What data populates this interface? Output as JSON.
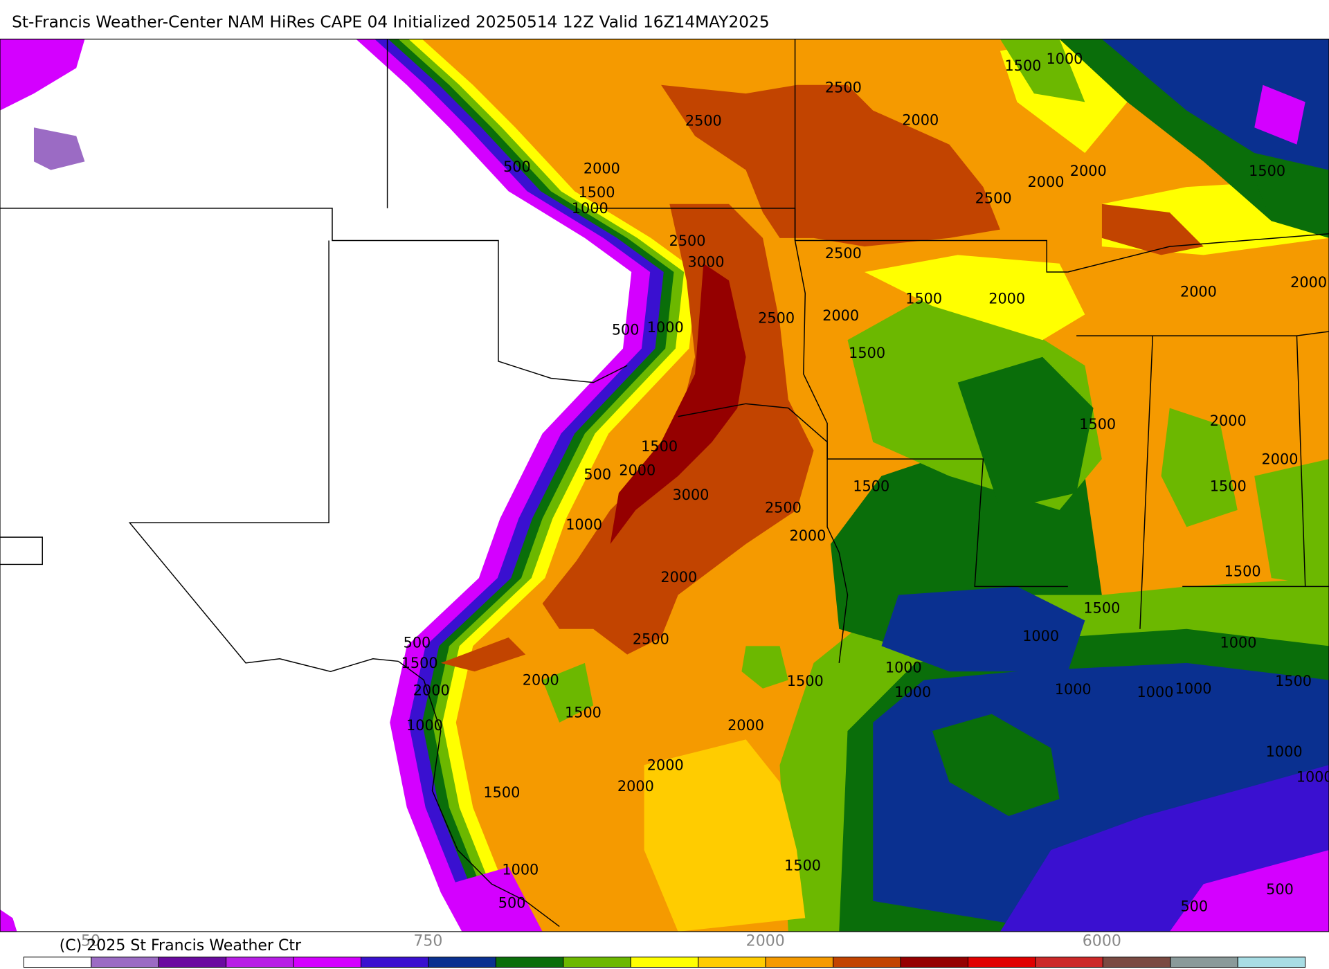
{
  "header": {
    "title": "St-Francis Weather-Center NAM HiRes CAPE  04 Initialized 20250514 12Z Valid 16Z14MAY2025"
  },
  "map": {
    "contour_labels": [
      "500",
      "2000",
      "1500",
      "1000",
      "2500",
      "2500",
      "2000",
      "1500",
      "1000",
      "2000",
      "2000",
      "2500",
      "1500",
      "2500",
      "2500",
      "3000",
      "1500",
      "2000",
      "2000",
      "2000",
      "2500",
      "2000",
      "500",
      "1000",
      "1500",
      "1500",
      "2000",
      "2000",
      "1500",
      "2000",
      "500",
      "3000",
      "1500",
      "1500",
      "2500",
      "1000",
      "2000",
      "2000",
      "1500",
      "1500",
      "1000",
      "1000",
      "500",
      "1500",
      "2500",
      "1000",
      "1500",
      "1500",
      "2000",
      "2000",
      "1000",
      "1000",
      "1000",
      "1000",
      "1500",
      "1000",
      "2000",
      "1000",
      "1000",
      "2000",
      "2000",
      "1500",
      "1500",
      "1000",
      "500",
      "500",
      "500"
    ]
  },
  "colorbar": {
    "colors": [
      "#ffffff",
      "#9b6bc4",
      "#6a0aa0",
      "#b81ee6",
      "#d400ff",
      "#3a10d0",
      "#0a3090",
      "#0a6e0a",
      "#6cb800",
      "#ffff00",
      "#ffcc00",
      "#f59a00",
      "#c24400",
      "#950000",
      "#e00000",
      "#cc2828",
      "#7a4a42",
      "#8a9a9a",
      "#a8dde4"
    ],
    "tick_labels": [
      "50",
      "750",
      "2000",
      "6000"
    ]
  },
  "footer": {
    "copyright": "(C) 2025 St Francis Weather Ctr"
  }
}
